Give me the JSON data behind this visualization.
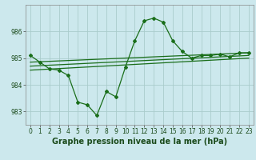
{
  "background_color": "#cce8ed",
  "grid_color": "#aacccc",
  "line_color": "#1a6e1a",
  "title": "Graphe pression niveau de la mer (hPa)",
  "xlim": [
    -0.5,
    23.5
  ],
  "ylim": [
    982.5,
    987.0
  ],
  "yticks": [
    983,
    984,
    985,
    986
  ],
  "xticks": [
    0,
    1,
    2,
    3,
    4,
    5,
    6,
    7,
    8,
    9,
    10,
    11,
    12,
    13,
    14,
    15,
    16,
    17,
    18,
    19,
    20,
    21,
    22,
    23
  ],
  "main_x": [
    0,
    1,
    2,
    3,
    4,
    5,
    6,
    7,
    8,
    9,
    10,
    11,
    12,
    13,
    14,
    15,
    16,
    17,
    18,
    19,
    20,
    21,
    22,
    23
  ],
  "main_y": [
    985.1,
    984.85,
    984.6,
    984.55,
    984.35,
    983.35,
    983.25,
    982.85,
    983.75,
    983.55,
    984.65,
    985.65,
    986.4,
    986.5,
    986.35,
    985.65,
    985.25,
    985.0,
    985.1,
    985.1,
    985.15,
    985.05,
    985.2,
    985.2
  ],
  "line1_x": [
    0,
    23
  ],
  "line1_y": [
    984.85,
    985.2
  ],
  "line2_x": [
    0,
    23
  ],
  "line2_y": [
    984.7,
    985.1
  ],
  "line3_x": [
    0,
    23
  ],
  "line3_y": [
    984.55,
    985.0
  ],
  "title_fontsize": 7,
  "tick_fontsize": 5.5
}
